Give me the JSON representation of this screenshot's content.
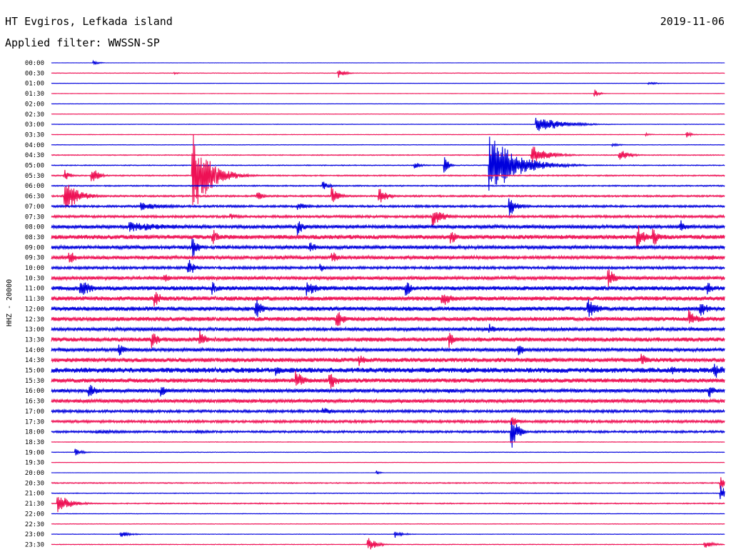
{
  "header": {
    "station": "HT Evgiros, Lefkada island",
    "filter": "Applied filter: WWSSN-SP",
    "date": "2019-11-06"
  },
  "chart_data": {
    "type": "line",
    "title": "HT Evgiros, Lefkada island",
    "subtitle": "Applied filter: WWSSN-SP",
    "date": "2019-11-06",
    "ylabel": "HHZ - 20000",
    "xlabel": "",
    "x_unit": "minutes within trace line",
    "x_range": [
      0,
      30
    ],
    "line_interval_minutes": 30,
    "colors": [
      "#0000dd",
      "#ee1155"
    ],
    "grid": false,
    "legend": "none",
    "rows": [
      {
        "label": "00:00",
        "noise": 0.2,
        "events": [
          {
            "t": 1.9,
            "amp": 3,
            "dur": 0.5
          }
        ]
      },
      {
        "label": "00:30",
        "noise": 0.3,
        "events": [
          {
            "t": 12.8,
            "amp": 7,
            "dur": 0.6
          },
          {
            "t": 5.5,
            "amp": 1.5,
            "dur": 0.4
          }
        ]
      },
      {
        "label": "01:00",
        "noise": 0.2,
        "events": [
          {
            "t": 26.6,
            "amp": 2,
            "dur": 1.0
          }
        ]
      },
      {
        "label": "01:30",
        "noise": 0.2,
        "events": [
          {
            "t": 24.2,
            "amp": 6,
            "dur": 0.4
          }
        ]
      },
      {
        "label": "02:00",
        "noise": 0.2,
        "events": []
      },
      {
        "label": "02:30",
        "noise": 0.2,
        "events": []
      },
      {
        "label": "03:00",
        "noise": 0.3,
        "events": [
          {
            "t": 21.6,
            "amp": 13,
            "dur": 2.2
          }
        ]
      },
      {
        "label": "03:30",
        "noise": 0.3,
        "events": [
          {
            "t": 28.3,
            "amp": 4,
            "dur": 0.5
          },
          {
            "t": 26.5,
            "amp": 2,
            "dur": 0.5
          }
        ]
      },
      {
        "label": "04:00",
        "noise": 0.3,
        "events": [
          {
            "t": 25.0,
            "amp": 2,
            "dur": 0.8
          }
        ]
      },
      {
        "label": "04:30",
        "noise": 0.5,
        "events": [
          {
            "t": 21.4,
            "amp": 14,
            "dur": 1.6
          },
          {
            "t": 25.3,
            "amp": 9,
            "dur": 0.9
          }
        ]
      },
      {
        "label": "05:00",
        "noise": 0.5,
        "events": [
          {
            "t": 19.5,
            "amp": 45,
            "dur": 2.5
          },
          {
            "t": 16.2,
            "amp": 5,
            "dur": 0.6
          },
          {
            "t": 17.5,
            "amp": 20,
            "dur": 0.3
          }
        ]
      },
      {
        "label": "05:30",
        "noise": 0.7,
        "events": [
          {
            "t": 6.3,
            "amp": 60,
            "dur": 1.6
          },
          {
            "t": 0.6,
            "amp": 8,
            "dur": 0.6
          },
          {
            "t": 1.8,
            "amp": 14,
            "dur": 0.6
          }
        ]
      },
      {
        "label": "06:00",
        "noise": 0.7,
        "events": [
          {
            "t": 12.1,
            "amp": 7,
            "dur": 0.6
          }
        ]
      },
      {
        "label": "06:30",
        "noise": 1.0,
        "events": [
          {
            "t": 0.6,
            "amp": 26,
            "dur": 1.2
          },
          {
            "t": 14.6,
            "amp": 12,
            "dur": 0.8
          },
          {
            "t": 12.5,
            "amp": 14,
            "dur": 0.6
          },
          {
            "t": 9.2,
            "amp": 8,
            "dur": 0.5
          }
        ]
      },
      {
        "label": "07:00",
        "noise": 1.2,
        "events": [
          {
            "t": 4.0,
            "amp": 6,
            "dur": 2.5
          },
          {
            "t": 11.0,
            "amp": 5,
            "dur": 1.2
          },
          {
            "t": 20.4,
            "amp": 14,
            "dur": 0.8
          }
        ]
      },
      {
        "label": "07:30",
        "noise": 1.4,
        "events": [
          {
            "t": 17.0,
            "amp": 14,
            "dur": 1.0
          },
          {
            "t": 8.0,
            "amp": 4,
            "dur": 1.0
          }
        ]
      },
      {
        "label": "08:00",
        "noise": 2.0,
        "events": [
          {
            "t": 3.5,
            "amp": 7,
            "dur": 5.0
          },
          {
            "t": 11.0,
            "amp": 12,
            "dur": 0.6
          },
          {
            "t": 28.0,
            "amp": 10,
            "dur": 0.8
          }
        ]
      },
      {
        "label": "08:30",
        "noise": 2.5,
        "events": [
          {
            "t": 7.2,
            "amp": 12,
            "dur": 0.6
          },
          {
            "t": 17.8,
            "amp": 12,
            "dur": 0.6
          },
          {
            "t": 26.1,
            "amp": 20,
            "dur": 0.6
          },
          {
            "t": 26.8,
            "amp": 16,
            "dur": 0.5
          }
        ]
      },
      {
        "label": "09:00",
        "noise": 2.0,
        "events": [
          {
            "t": 6.3,
            "amp": 14,
            "dur": 0.6
          },
          {
            "t": 11.5,
            "amp": 10,
            "dur": 0.6
          }
        ]
      },
      {
        "label": "09:30",
        "noise": 2.0,
        "events": [
          {
            "t": 0.8,
            "amp": 12,
            "dur": 0.6
          },
          {
            "t": 12.5,
            "amp": 10,
            "dur": 0.6
          },
          {
            "t": 29.3,
            "amp": 6,
            "dur": 0.6
          }
        ]
      },
      {
        "label": "10:00",
        "noise": 1.5,
        "events": [
          {
            "t": 6.1,
            "amp": 14,
            "dur": 0.6
          },
          {
            "t": 12.0,
            "amp": 6,
            "dur": 0.6
          }
        ]
      },
      {
        "label": "10:30",
        "noise": 2.0,
        "events": [
          {
            "t": 24.8,
            "amp": 14,
            "dur": 0.8
          },
          {
            "t": 5.0,
            "amp": 8,
            "dur": 0.6
          }
        ]
      },
      {
        "label": "11:00",
        "noise": 2.5,
        "events": [
          {
            "t": 1.3,
            "amp": 12,
            "dur": 1.2
          },
          {
            "t": 11.4,
            "amp": 12,
            "dur": 1.0
          },
          {
            "t": 15.8,
            "amp": 12,
            "dur": 0.6
          },
          {
            "t": 7.2,
            "amp": 10,
            "dur": 0.6
          },
          {
            "t": 29.2,
            "amp": 10,
            "dur": 0.6
          }
        ]
      },
      {
        "label": "11:30",
        "noise": 2.5,
        "events": [
          {
            "t": 4.6,
            "amp": 14,
            "dur": 0.6
          },
          {
            "t": 17.4,
            "amp": 12,
            "dur": 1.0
          }
        ]
      },
      {
        "label": "12:00",
        "noise": 2.5,
        "events": [
          {
            "t": 9.1,
            "amp": 16,
            "dur": 0.6
          },
          {
            "t": 23.9,
            "amp": 14,
            "dur": 1.0
          },
          {
            "t": 28.9,
            "amp": 16,
            "dur": 0.6
          }
        ]
      },
      {
        "label": "12:30",
        "noise": 2.5,
        "events": [
          {
            "t": 12.7,
            "amp": 14,
            "dur": 0.8
          },
          {
            "t": 28.4,
            "amp": 14,
            "dur": 0.8
          }
        ]
      },
      {
        "label": "13:00",
        "noise": 2.0,
        "events": [
          {
            "t": 19.5,
            "amp": 8,
            "dur": 0.6
          }
        ]
      },
      {
        "label": "13:30",
        "noise": 2.5,
        "events": [
          {
            "t": 4.5,
            "amp": 14,
            "dur": 0.6
          },
          {
            "t": 6.6,
            "amp": 14,
            "dur": 0.6
          },
          {
            "t": 17.7,
            "amp": 12,
            "dur": 0.6
          }
        ]
      },
      {
        "label": "14:00",
        "noise": 2.0,
        "events": [
          {
            "t": 3.0,
            "amp": 10,
            "dur": 0.6
          },
          {
            "t": 20.8,
            "amp": 10,
            "dur": 0.6
          }
        ]
      },
      {
        "label": "14:30",
        "noise": 2.5,
        "events": [
          {
            "t": 13.7,
            "amp": 10,
            "dur": 0.6
          },
          {
            "t": 26.3,
            "amp": 10,
            "dur": 0.6
          }
        ]
      },
      {
        "label": "15:00",
        "noise": 3.0,
        "events": [
          {
            "t": 10.0,
            "amp": 8,
            "dur": 1.0
          },
          {
            "t": 27.6,
            "amp": 8,
            "dur": 0.8
          },
          {
            "t": 29.5,
            "amp": 14,
            "dur": 0.8
          }
        ]
      },
      {
        "label": "15:30",
        "noise": 2.5,
        "events": [
          {
            "t": 10.9,
            "amp": 14,
            "dur": 0.8
          },
          {
            "t": 12.4,
            "amp": 14,
            "dur": 0.8
          }
        ]
      },
      {
        "label": "16:00",
        "noise": 2.0,
        "events": [
          {
            "t": 1.7,
            "amp": 14,
            "dur": 0.6
          },
          {
            "t": 4.9,
            "amp": 10,
            "dur": 0.6
          },
          {
            "t": 17.7,
            "amp": 4,
            "dur": 0.6
          },
          {
            "t": 29.3,
            "amp": 10,
            "dur": 0.6
          }
        ]
      },
      {
        "label": "16:30",
        "noise": 2.0,
        "events": []
      },
      {
        "label": "17:00",
        "noise": 1.5,
        "events": [
          {
            "t": 12.1,
            "amp": 6,
            "dur": 1.0
          }
        ]
      },
      {
        "label": "17:30",
        "noise": 1.5,
        "events": [
          {
            "t": 20.5,
            "amp": 10,
            "dur": 0.6
          }
        ]
      },
      {
        "label": "18:00",
        "noise": 1.2,
        "events": [
          {
            "t": 20.5,
            "amp": 26,
            "dur": 0.6
          },
          {
            "t": 2.0,
            "amp": 3,
            "dur": 4.0
          },
          {
            "t": 6.5,
            "amp": 3,
            "dur": 1.5
          }
        ]
      },
      {
        "label": "18:30",
        "noise": 0.3,
        "events": []
      },
      {
        "label": "19:00",
        "noise": 0.3,
        "events": [
          {
            "t": 1.1,
            "amp": 5,
            "dur": 0.6
          }
        ]
      },
      {
        "label": "19:30",
        "noise": 0.2,
        "events": []
      },
      {
        "label": "20:00",
        "noise": 0.2,
        "events": [
          {
            "t": 14.5,
            "amp": 3,
            "dur": 0.3
          }
        ]
      },
      {
        "label": "20:30",
        "noise": 0.6,
        "events": [
          {
            "t": 29.8,
            "amp": 10,
            "dur": 0.5
          }
        ]
      },
      {
        "label": "21:00",
        "noise": 0.4,
        "events": [
          {
            "t": 29.8,
            "amp": 12,
            "dur": 0.6
          }
        ]
      },
      {
        "label": "21:30",
        "noise": 0.6,
        "events": [
          {
            "t": 0.3,
            "amp": 14,
            "dur": 1.2
          }
        ]
      },
      {
        "label": "22:00",
        "noise": 0.3,
        "events": []
      },
      {
        "label": "22:30",
        "noise": 0.3,
        "events": []
      },
      {
        "label": "23:00",
        "noise": 0.3,
        "events": [
          {
            "t": 3.1,
            "amp": 4,
            "dur": 1.0
          },
          {
            "t": 15.3,
            "amp": 5,
            "dur": 0.8
          }
        ]
      },
      {
        "label": "23:30",
        "noise": 0.4,
        "events": [
          {
            "t": 14.1,
            "amp": 10,
            "dur": 0.8
          },
          {
            "t": 29.1,
            "amp": 6,
            "dur": 0.8
          }
        ]
      }
    ]
  }
}
